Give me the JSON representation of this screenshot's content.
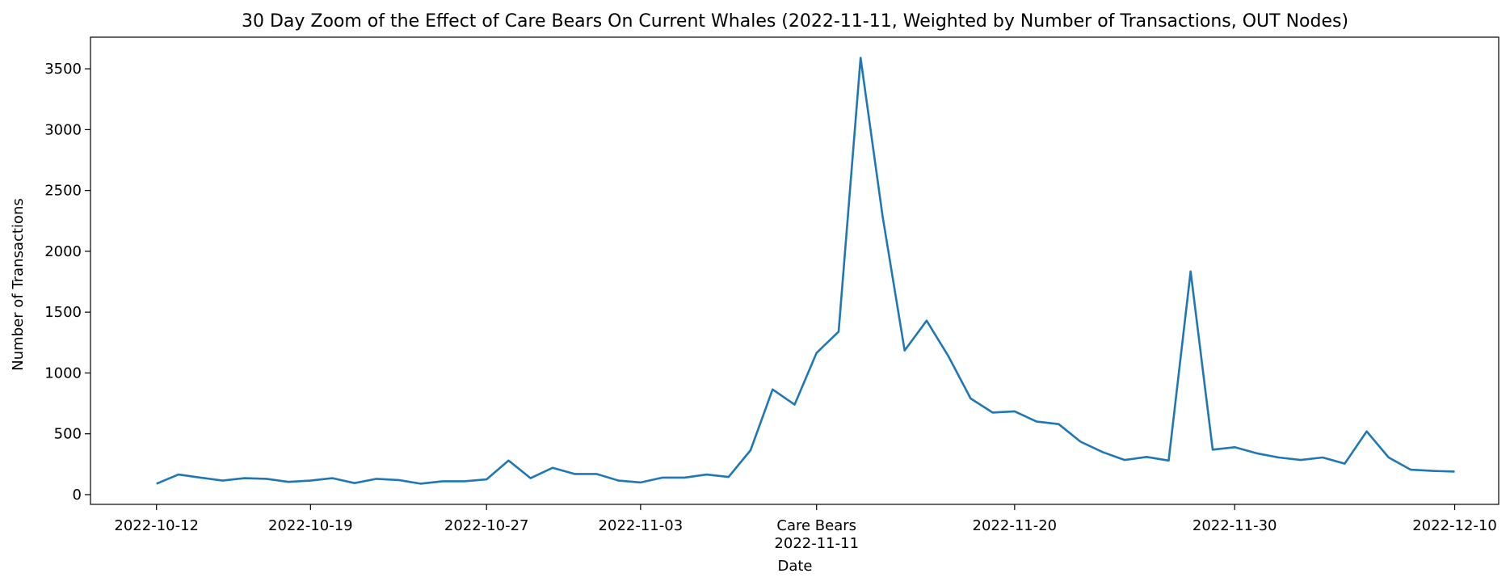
{
  "chart_data": {
    "type": "line",
    "title": "30 Day Zoom of the Effect of Care Bears On Current Whales (2022-11-11, Weighted by Number of Transactions, OUT Nodes)",
    "xlabel": "Date",
    "ylabel": "Number of Transactions",
    "xlim": [
      "2022-10-09",
      "2022-12-12"
    ],
    "ylim": [
      -80,
      3760
    ],
    "yticks": [
      0,
      500,
      1000,
      1500,
      2000,
      2500,
      3000,
      3500
    ],
    "xticks": [
      {
        "date": "2022-10-12",
        "label": "2022-10-12"
      },
      {
        "date": "2022-10-19",
        "label": "2022-10-19"
      },
      {
        "date": "2022-10-27",
        "label": "2022-10-27"
      },
      {
        "date": "2022-11-03",
        "label": "2022-11-03"
      },
      {
        "date": "2022-11-11",
        "label": "Care Bears",
        "label2": "2022-11-11"
      },
      {
        "date": "2022-11-20",
        "label": "2022-11-20"
      },
      {
        "date": "2022-11-30",
        "label": "2022-11-30"
      },
      {
        "date": "2022-12-10",
        "label": "2022-12-10"
      }
    ],
    "grid": false,
    "legend": "none",
    "color": "#1f77b4",
    "x": [
      "2022-10-12",
      "2022-10-13",
      "2022-10-14",
      "2022-10-15",
      "2022-10-16",
      "2022-10-17",
      "2022-10-18",
      "2022-10-19",
      "2022-10-20",
      "2022-10-21",
      "2022-10-22",
      "2022-10-23",
      "2022-10-24",
      "2022-10-25",
      "2022-10-26",
      "2022-10-27",
      "2022-10-28",
      "2022-10-29",
      "2022-10-30",
      "2022-10-31",
      "2022-11-01",
      "2022-11-02",
      "2022-11-03",
      "2022-11-04",
      "2022-11-05",
      "2022-11-06",
      "2022-11-07",
      "2022-11-08",
      "2022-11-09",
      "2022-11-10",
      "2022-11-11",
      "2022-11-12",
      "2022-11-13",
      "2022-11-14",
      "2022-11-15",
      "2022-11-16",
      "2022-11-17",
      "2022-11-18",
      "2022-11-19",
      "2022-11-20",
      "2022-11-21",
      "2022-11-22",
      "2022-11-23",
      "2022-11-24",
      "2022-11-25",
      "2022-11-26",
      "2022-11-27",
      "2022-11-28",
      "2022-11-29",
      "2022-11-30",
      "2022-12-01",
      "2022-12-02",
      "2022-12-03",
      "2022-12-04",
      "2022-12-05",
      "2022-12-06",
      "2022-12-07",
      "2022-12-08",
      "2022-12-09",
      "2022-12-10"
    ],
    "y": [
      90,
      165,
      140,
      115,
      135,
      130,
      105,
      115,
      135,
      95,
      130,
      120,
      90,
      110,
      110,
      125,
      280,
      135,
      220,
      170,
      170,
      115,
      100,
      140,
      140,
      165,
      145,
      365,
      865,
      740,
      1165,
      1340,
      3590,
      2290,
      1185,
      1430,
      1135,
      790,
      675,
      685,
      600,
      580,
      435,
      350,
      285,
      310,
      280,
      1835,
      370,
      390,
      340,
      305,
      285,
      305,
      255,
      520,
      305,
      205,
      195,
      190
    ]
  }
}
